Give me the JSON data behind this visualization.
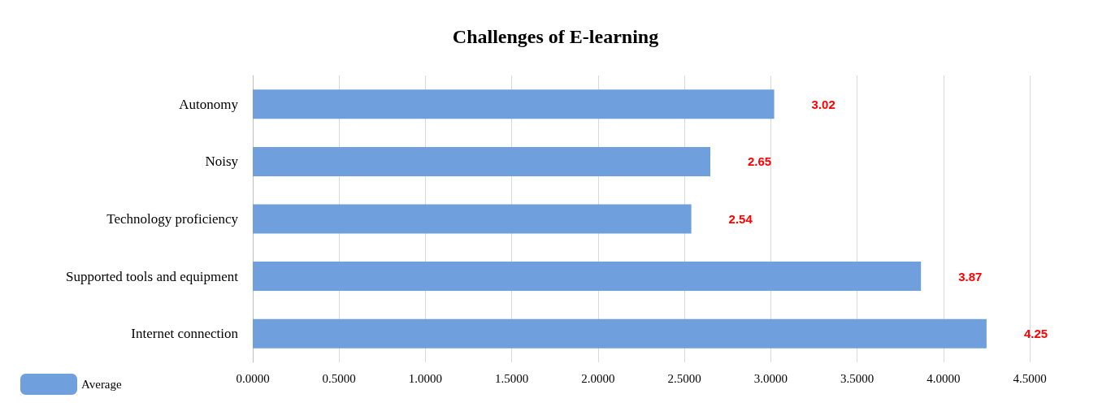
{
  "chart_data": {
    "type": "bar",
    "title": "Challenges of E-learning",
    "orientation": "horizontal",
    "categories": [
      "Autonomy",
      "Noisy",
      "Technology proficiency",
      "Supported tools and equipment",
      "Internet connection"
    ],
    "series": [
      {
        "name": "Average",
        "color": "#6f9fdc",
        "values": [
          3.02,
          2.65,
          2.54,
          3.87,
          4.25
        ]
      }
    ],
    "xlim": [
      0,
      4.5
    ],
    "xticks": [
      {
        "value": 0,
        "label": "0.0000"
      },
      {
        "value": 0.5,
        "label": "0.5000"
      },
      {
        "value": 1,
        "label": "1.0000"
      },
      {
        "value": 1.5,
        "label": "1.5000"
      },
      {
        "value": 2,
        "label": "2.0000"
      },
      {
        "value": 2.5,
        "label": "2.5000"
      },
      {
        "value": 3,
        "label": "3.0000"
      },
      {
        "value": 3.5,
        "label": "3.5000"
      },
      {
        "value": 4,
        "label": "4.0000"
      },
      {
        "value": 4.5,
        "label": "4.5000"
      }
    ],
    "grid": "x",
    "legend": "bottom left",
    "data_labels": true
  }
}
